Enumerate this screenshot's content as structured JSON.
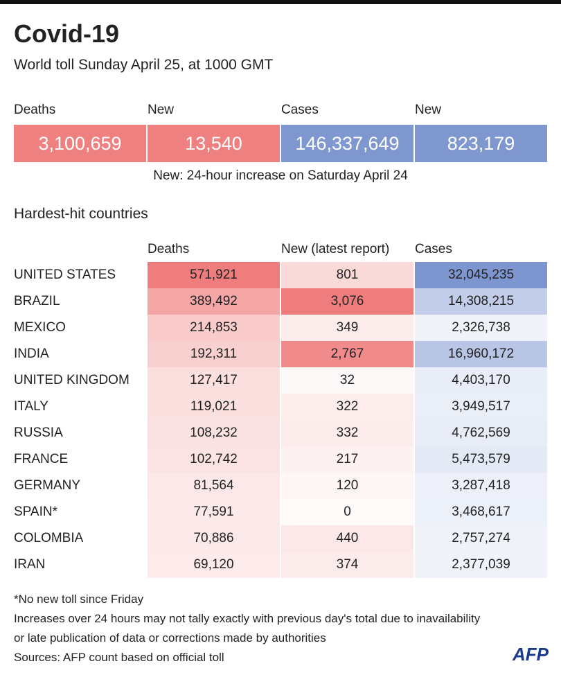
{
  "header": {
    "title": "Covid-19",
    "subtitle": "World toll Sunday April 25, at 1000 GMT"
  },
  "summary": {
    "items": [
      {
        "label": "Deaths",
        "value": "3,100,659"
      },
      {
        "label": "New",
        "value": "13,540"
      },
      {
        "label": "Cases",
        "value": "146,337,649"
      },
      {
        "label": "New",
        "value": "823,179"
      }
    ],
    "note": "New: 24-hour increase on Saturday April 24"
  },
  "section_title": "Hardest-hit countries",
  "table": {
    "columns": [
      "Deaths",
      "New (latest report)",
      "Cases"
    ],
    "rows": [
      [
        "UNITED STATES",
        "571,921",
        "801",
        "32,045,235"
      ],
      [
        "BRAZIL",
        "389,492",
        "3,076",
        "14,308,215"
      ],
      [
        "MEXICO",
        "214,853",
        "349",
        "2,326,738"
      ],
      [
        "INDIA",
        "192,311",
        "2,767",
        "16,960,172"
      ],
      [
        "UNITED KINGDOM",
        "127,417",
        "32",
        "4,403,170"
      ],
      [
        "ITALY",
        "119,021",
        "322",
        "3,949,517"
      ],
      [
        "RUSSIA",
        "108,232",
        "332",
        "4,762,569"
      ],
      [
        "FRANCE",
        "102,742",
        "217",
        "5,473,579"
      ],
      [
        "GERMANY",
        "81,564",
        "120",
        "3,287,418"
      ],
      [
        "SPAIN*",
        "77,591",
        "0",
        "3,468,617"
      ],
      [
        "COLOMBIA",
        "70,886",
        "440",
        "2,757,274"
      ],
      [
        "IRAN",
        "69,120",
        "374",
        "2,377,039"
      ]
    ]
  },
  "footnotes": [
    "*No new toll since Friday",
    "Increases over 24 hours may not tally exactly with previous day's total due to inavailability",
    "or late publication of data or corrections made by authorities",
    "Sources: AFP count based on official toll"
  ],
  "logo": "AFP"
}
